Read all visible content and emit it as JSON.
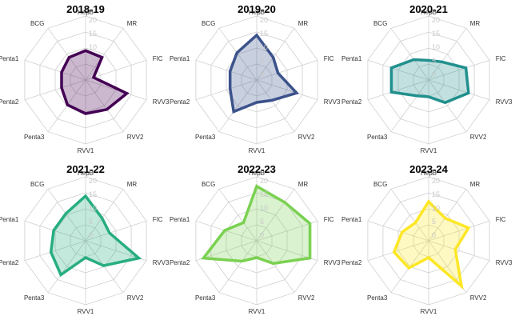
{
  "chart_data": [
    {
      "type": "radar",
      "title": "2018-19",
      "axes": [
        "HepB",
        "MR",
        "FIC",
        "RVV3",
        "RVV2",
        "RVV1",
        "Penta3",
        "Penta2",
        "Penta1",
        "BCG"
      ],
      "ticks": [
        "0",
        "5",
        "10",
        "15",
        "20"
      ],
      "range": [
        0,
        20
      ],
      "color": "#440154",
      "values": [
        10.5,
        10,
        3,
        15.5,
        13,
        12,
        11,
        9,
        9,
        10
      ]
    },
    {
      "type": "radar",
      "title": "2019-20",
      "axes": [
        "HepB",
        "MR",
        "FIC",
        "RVV3",
        "RVV2",
        "RVV1",
        "Penta3",
        "Penta2",
        "Penta1",
        "BCG"
      ],
      "ticks": [
        "0",
        "5",
        "10",
        "15",
        "20"
      ],
      "range": [
        0,
        20
      ],
      "color": "#3b528b",
      "values": [
        16,
        10,
        8,
        15,
        9,
        8,
        14,
        10,
        10,
        12
      ]
    },
    {
      "type": "radar",
      "title": "2020-21",
      "axes": [
        "HepB",
        "MR",
        "FIC",
        "RVV3",
        "RVV2",
        "RVV1",
        "Penta3",
        "Penta2",
        "Penta1",
        "BCG"
      ],
      "ticks": [
        "0",
        "5",
        "10",
        "15",
        "20"
      ],
      "range": [
        0,
        20
      ],
      "color": "#21908d",
      "values": [
        7,
        8,
        14,
        15,
        10,
        6,
        7,
        14,
        14,
        9
      ]
    },
    {
      "type": "radar",
      "title": "2021-22",
      "axes": [
        "HepB",
        "MR",
        "FIC",
        "RVV3",
        "RVV2",
        "RVV1",
        "Penta3",
        "Penta2",
        "Penta1",
        "BCG"
      ],
      "ticks": [
        "0",
        "5",
        "10",
        "15",
        "20"
      ],
      "range": [
        0,
        20
      ],
      "color": "#27ad81",
      "values": [
        16,
        10,
        9,
        20,
        11,
        6,
        15,
        13,
        12,
        12
      ]
    },
    {
      "type": "radar",
      "title": "2022-23",
      "axes": [
        "HepB",
        "MR",
        "FIC",
        "RVV3",
        "RVV2",
        "RVV1",
        "Penta3",
        "Penta2",
        "Penta1",
        "BCG"
      ],
      "ticks": [
        "0",
        "5",
        "10",
        "15",
        "20"
      ],
      "range": [
        0,
        20
      ],
      "color": "#7ad151",
      "values": [
        19.5,
        17,
        20,
        20,
        10,
        6,
        9,
        20,
        12,
        8
      ]
    },
    {
      "type": "radar",
      "title": "2023-24",
      "axes": [
        "HepB",
        "MR",
        "FIC",
        "RVV3",
        "RVV2",
        "RVV1",
        "Penta3",
        "Penta2",
        "Penta1",
        "BCG"
      ],
      "ticks": [
        "0",
        "5",
        "10",
        "15",
        "20"
      ],
      "range": [
        0,
        20
      ],
      "color": "#fde725",
      "values": [
        14,
        10,
        15,
        10,
        20,
        6,
        12,
        13,
        10,
        8
      ]
    }
  ]
}
